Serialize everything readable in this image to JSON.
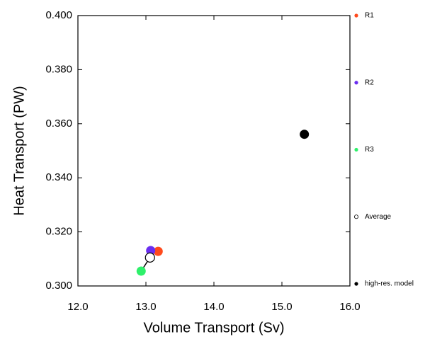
{
  "chart_data": {
    "type": "scatter",
    "x_label": "Volume Transport (Sv)",
    "y_label": "Heat Transport (PW)",
    "xlim": [
      12.0,
      16.0
    ],
    "ylim": [
      0.3,
      0.4
    ],
    "xticks": [
      {
        "value": 12,
        "label": "12.0"
      },
      {
        "value": 13,
        "label": "13.0"
      },
      {
        "value": 14,
        "label": "14.0"
      },
      {
        "value": 15,
        "label": "15.0"
      },
      {
        "value": 16,
        "label": "16.0"
      }
    ],
    "yticks": [
      {
        "value": 0.3,
        "label": "0.300"
      },
      {
        "value": 0.32,
        "label": "0.320"
      },
      {
        "value": 0.34,
        "label": "0.340"
      },
      {
        "value": 0.36,
        "label": "0.360"
      },
      {
        "value": 0.38,
        "label": "0.380"
      },
      {
        "value": 0.4,
        "label": "0.400"
      }
    ],
    "legend_position": "right",
    "series": [
      {
        "name": "R1",
        "color": "#ff4a1c",
        "filled": true,
        "x": [
          13.18
        ],
        "values": [
          0.3128
        ]
      },
      {
        "name": "R2",
        "color": "#6a2ef0",
        "filled": true,
        "x": [
          13.07
        ],
        "values": [
          0.3131
        ]
      },
      {
        "name": "R3",
        "color": "#2ef06a",
        "filled": true,
        "x": [
          12.93
        ],
        "values": [
          0.3055
        ]
      },
      {
        "name": "Average",
        "color": "#000000",
        "filled": false,
        "x": [
          13.06
        ],
        "values": [
          0.3105
        ]
      },
      {
        "name": "high-res. model",
        "color": "#000000",
        "filled": true,
        "x": [
          15.33
        ],
        "values": [
          0.3561
        ]
      }
    ]
  }
}
